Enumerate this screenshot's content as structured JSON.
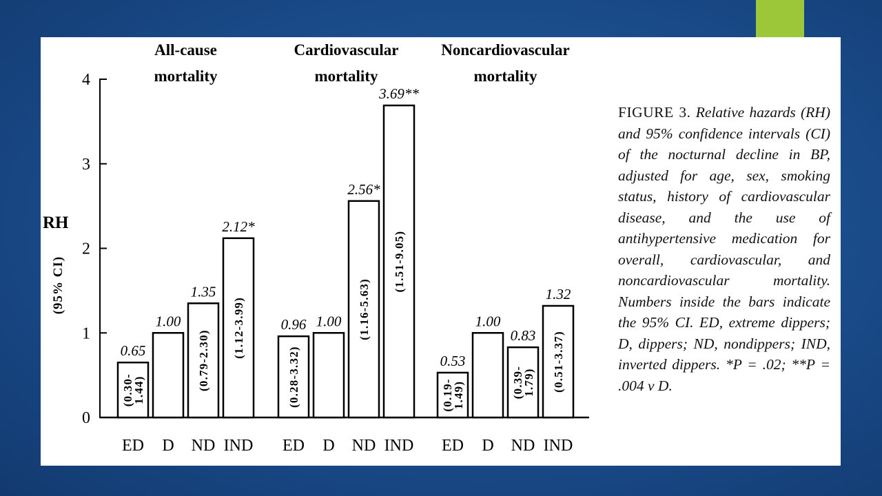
{
  "theme": {
    "accent_color": "#9bc739",
    "background": "#1c4f8f",
    "panel": "#ffffff"
  },
  "chart_data": {
    "type": "bar",
    "ylabel": "RH",
    "ylabel_sub": "(95% CI)",
    "ylim": [
      0,
      4
    ],
    "yticks": [
      "0",
      "1",
      "2",
      "3",
      "4"
    ],
    "groups": [
      {
        "title_line1": "All-cause",
        "title_line2": "mortality",
        "bars": [
          {
            "category": "ED",
            "value": 0.65,
            "value_label": "0.65",
            "ci_label": [
              "(0.30-",
              "1.44)"
            ]
          },
          {
            "category": "D",
            "value": 1.0,
            "value_label": "1.00",
            "ci_label": []
          },
          {
            "category": "ND",
            "value": 1.35,
            "value_label": "1.35",
            "ci_label": [
              "(0.79-2.30)"
            ]
          },
          {
            "category": "IND",
            "value": 2.12,
            "value_label": "2.12*",
            "ci_label": [
              "(1.12-3.99)"
            ]
          }
        ]
      },
      {
        "title_line1": "Cardiovascular",
        "title_line2": "mortality",
        "bars": [
          {
            "category": "ED",
            "value": 0.96,
            "value_label": "0.96",
            "ci_label": [
              "(0.28-3.32)"
            ]
          },
          {
            "category": "D",
            "value": 1.0,
            "value_label": "1.00",
            "ci_label": []
          },
          {
            "category": "ND",
            "value": 2.56,
            "value_label": "2.56*",
            "ci_label": [
              "(1.16-5.63)"
            ]
          },
          {
            "category": "IND",
            "value": 3.69,
            "value_label": "3.69**",
            "ci_label": [
              "(1.51-9.05)"
            ]
          }
        ]
      },
      {
        "title_line1": "Noncardiovascular",
        "title_line2": "mortality",
        "bars": [
          {
            "category": "ED",
            "value": 0.53,
            "value_label": "0.53",
            "ci_label": [
              "(0.19-",
              "1.49)"
            ]
          },
          {
            "category": "D",
            "value": 1.0,
            "value_label": "1.00",
            "ci_label": []
          },
          {
            "category": "ND",
            "value": 0.83,
            "value_label": "0.83",
            "ci_label": [
              "(0.39-",
              "1.79)"
            ]
          },
          {
            "category": "IND",
            "value": 1.32,
            "value_label": "1.32",
            "ci_label": [
              "(0.51-3.37)"
            ]
          }
        ]
      }
    ]
  },
  "caption": {
    "lead": "FIGURE 3.",
    "text": "Relative hazards (RH) and 95% confidence intervals (CI) of the nocturnal decline in BP, adjusted for age, sex, smoking status, history of cardiovascular disease, and the use of antihypertensive medication for overall, cardiovascular, and noncardiovascular mortality. Numbers inside the bars indicate the 95% CI. ED, extreme dippers; D, dippers; ND, nondippers; IND, inverted dippers. *P = .02; **P = .004 v D."
  }
}
